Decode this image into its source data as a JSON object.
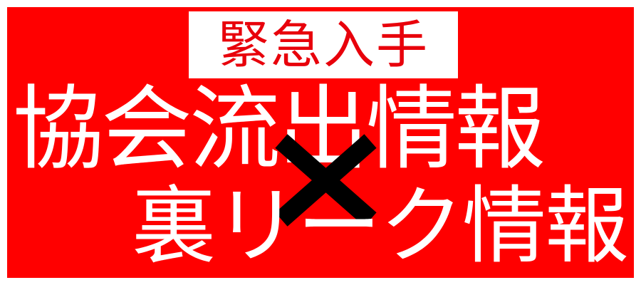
{
  "badge": {
    "text": "緊急入手"
  },
  "headline": {
    "line1": "協会流出情報",
    "line2": "裏リーク情報"
  },
  "colors": {
    "background": "#ff0000",
    "badge_bg": "#ffffff",
    "badge_text": "#e8000b",
    "headline_text": "#ffffff",
    "cross_mark": "#000000"
  },
  "icons": {
    "separator": "cross-mark-icon"
  }
}
